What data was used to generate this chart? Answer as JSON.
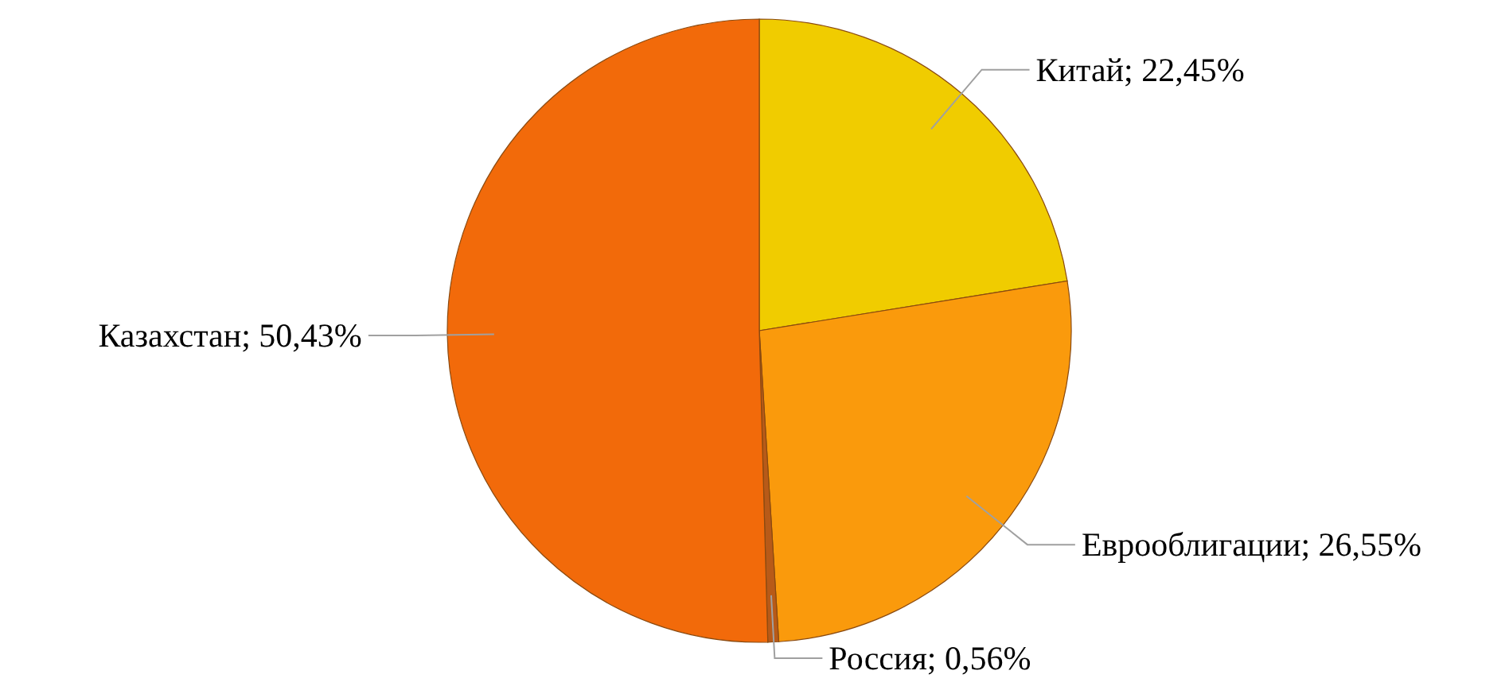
{
  "chart_data": {
    "type": "pie",
    "categories": [
      "Китай",
      "Еврооблигации",
      "Россия",
      "Казахстан"
    ],
    "values": [
      22.45,
      26.55,
      0.56,
      50.43
    ],
    "value_labels": [
      "22,45%",
      "26,55%",
      "0,56%",
      "50,43%"
    ],
    "colors": [
      "#f0cc00",
      "#fa9a0c",
      "#b85a18",
      "#f26a0a"
    ]
  }
}
